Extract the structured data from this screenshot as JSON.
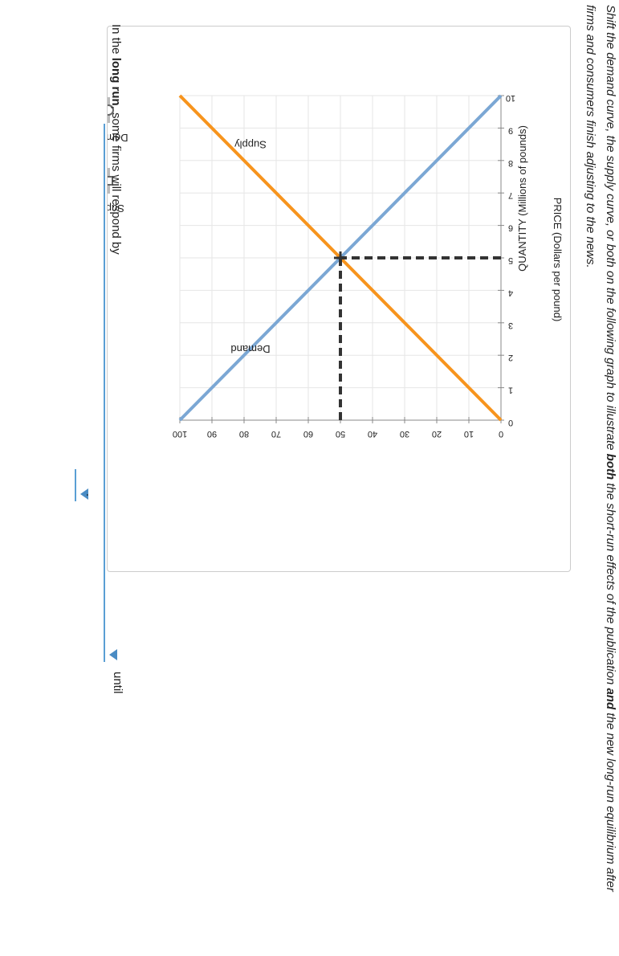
{
  "instruction": {
    "before": "Shift the demand curve, the supply curve, or both on the following graph to illustrate ",
    "bold1": "both",
    "middle": " the short-run effects of the publication ",
    "bold2": "and",
    "after": " the new long-run equilibrium after firms and consumers finish adjusting to the news."
  },
  "question": {
    "prefix": "In the ",
    "bold": "long run",
    "suffix": ", some firms will respond by",
    "until": "until",
    "period": "."
  },
  "legend": [
    {
      "label": "Demand",
      "marker": "circle"
    },
    {
      "label": "Supply",
      "marker": "square"
    }
  ],
  "colors": {
    "demand": "#7ba7d4",
    "supply": "#f7941d",
    "guide": "#333333"
  },
  "chart_data": {
    "type": "line",
    "xlabel": "QUANTITY (Millions of pounds)",
    "ylabel": "PRICE (Dollars per pound)",
    "xlim": [
      0,
      100
    ],
    "ylim": [
      0,
      10
    ],
    "xticks": [
      0,
      10,
      20,
      30,
      40,
      50,
      60,
      70,
      80,
      90,
      100
    ],
    "yticks": [
      0,
      1,
      2,
      3,
      4,
      5,
      6,
      7,
      8,
      9,
      10
    ],
    "grid": true,
    "series": [
      {
        "name": "Demand",
        "x": [
          0,
          100
        ],
        "y": [
          10,
          0
        ],
        "label_at": [
          78,
          2.3
        ]
      },
      {
        "name": "Supply",
        "x": [
          0,
          100
        ],
        "y": [
          0,
          10
        ],
        "label_at": [
          78,
          8.6
        ]
      }
    ],
    "equilibrium": {
      "x": 50,
      "y": 5
    }
  }
}
